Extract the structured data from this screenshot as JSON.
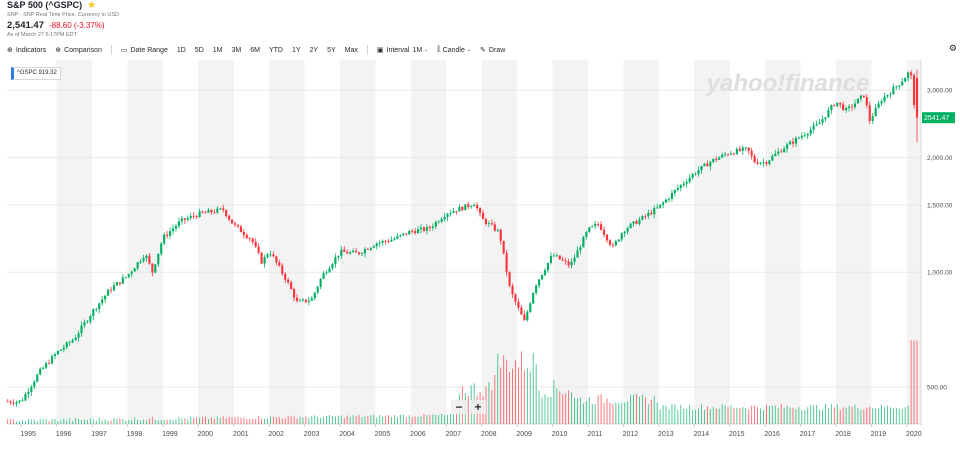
{
  "header": {
    "title": "S&P 500 (^GSPC)",
    "exchange": "SNP - SNP Real Time Price. Currency in USD",
    "price": "2,541.47",
    "change": "-88.60 (-3.37%)",
    "as_of": "As of March 27 5:17PM EDT"
  },
  "toolbar": {
    "indicators": "Indicators",
    "comparison": "Comparison",
    "date_range": "Date Range",
    "ranges": [
      "1D",
      "5D",
      "1M",
      "3M",
      "6M",
      "YTD",
      "1Y",
      "2Y",
      "5Y",
      "Max"
    ],
    "interval_label": "Interval",
    "interval_value": "1M",
    "chart_type": "Candle",
    "draw": "Draw"
  },
  "legend": {
    "label": "^GSPC 919.32"
  },
  "watermark": "yahoo!finance",
  "colors": {
    "up": "#00b061",
    "down": "#ff333a",
    "band": "#f3f3f3",
    "accent": "#2e7bde"
  },
  "chart_data": {
    "type": "candlestick",
    "title": "S&P 500 (^GSPC)",
    "interval": "1M",
    "y_scale": "log",
    "ylim": [
      400,
      3600
    ],
    "x_range": [
      1994.6,
      2020.4
    ],
    "x_tick_labels": [
      "1995",
      "1996",
      "1997",
      "1998",
      "1999",
      "2000",
      "2001",
      "2002",
      "2003",
      "2004",
      "2005",
      "2006",
      "2007",
      "2008",
      "2009",
      "2010",
      "2011",
      "2012",
      "2013",
      "2014",
      "2015",
      "2016",
      "2017",
      "2018",
      "2019",
      "2020"
    ],
    "y_tick_labels": [
      "500.00",
      "1,000.00",
      "1,500.00",
      "2,000.00",
      "3,000.00"
    ],
    "y_ticks": [
      500,
      1000,
      1500,
      2000,
      3000
    ],
    "last_price_label": "2541.47",
    "last_price": 2541.47,
    "close_points": [
      [
        1994.6,
        458
      ],
      [
        1995.0,
        459
      ],
      [
        1995.5,
        545
      ],
      [
        1996.0,
        615
      ],
      [
        1996.5,
        670
      ],
      [
        1997.0,
        786
      ],
      [
        1997.5,
        900
      ],
      [
        1998.0,
        980
      ],
      [
        1998.5,
        1120
      ],
      [
        1998.7,
        1000
      ],
      [
        1999.0,
        1230
      ],
      [
        1999.5,
        1360
      ],
      [
        2000.0,
        1420
      ],
      [
        2000.7,
        1460
      ],
      [
        2001.0,
        1330
      ],
      [
        2001.5,
        1220
      ],
      [
        2001.8,
        1060
      ],
      [
        2002.0,
        1140
      ],
      [
        2002.5,
        950
      ],
      [
        2002.8,
        830
      ],
      [
        2003.2,
        850
      ],
      [
        2003.5,
        980
      ],
      [
        2004.0,
        1130
      ],
      [
        2004.5,
        1120
      ],
      [
        2005.0,
        1190
      ],
      [
        2005.5,
        1220
      ],
      [
        2006.0,
        1280
      ],
      [
        2006.5,
        1300
      ],
      [
        2007.0,
        1430
      ],
      [
        2007.5,
        1480
      ],
      [
        2007.8,
        1520
      ],
      [
        2008.0,
        1380
      ],
      [
        2008.5,
        1270
      ],
      [
        2008.8,
        900
      ],
      [
        2009.2,
        740
      ],
      [
        2009.5,
        920
      ],
      [
        2010.0,
        1110
      ],
      [
        2010.5,
        1040
      ],
      [
        2011.0,
        1290
      ],
      [
        2011.3,
        1340
      ],
      [
        2011.7,
        1160
      ],
      [
        2012.0,
        1290
      ],
      [
        2012.5,
        1380
      ],
      [
        2013.0,
        1480
      ],
      [
        2013.5,
        1650
      ],
      [
        2014.0,
        1820
      ],
      [
        2014.5,
        1960
      ],
      [
        2015.0,
        2060
      ],
      [
        2015.5,
        2100
      ],
      [
        2015.7,
        1950
      ],
      [
        2016.0,
        1940
      ],
      [
        2016.5,
        2110
      ],
      [
        2017.0,
        2270
      ],
      [
        2017.5,
        2440
      ],
      [
        2018.0,
        2800
      ],
      [
        2018.3,
        2650
      ],
      [
        2018.8,
        2920
      ],
      [
        2018.95,
        2500
      ],
      [
        2019.3,
        2850
      ],
      [
        2019.5,
        2950
      ],
      [
        2019.9,
        3200
      ],
      [
        2020.1,
        3380
      ],
      [
        2020.25,
        2540
      ]
    ],
    "volume": "monthly volume bars, higher around 2008-2009 and 2020"
  }
}
